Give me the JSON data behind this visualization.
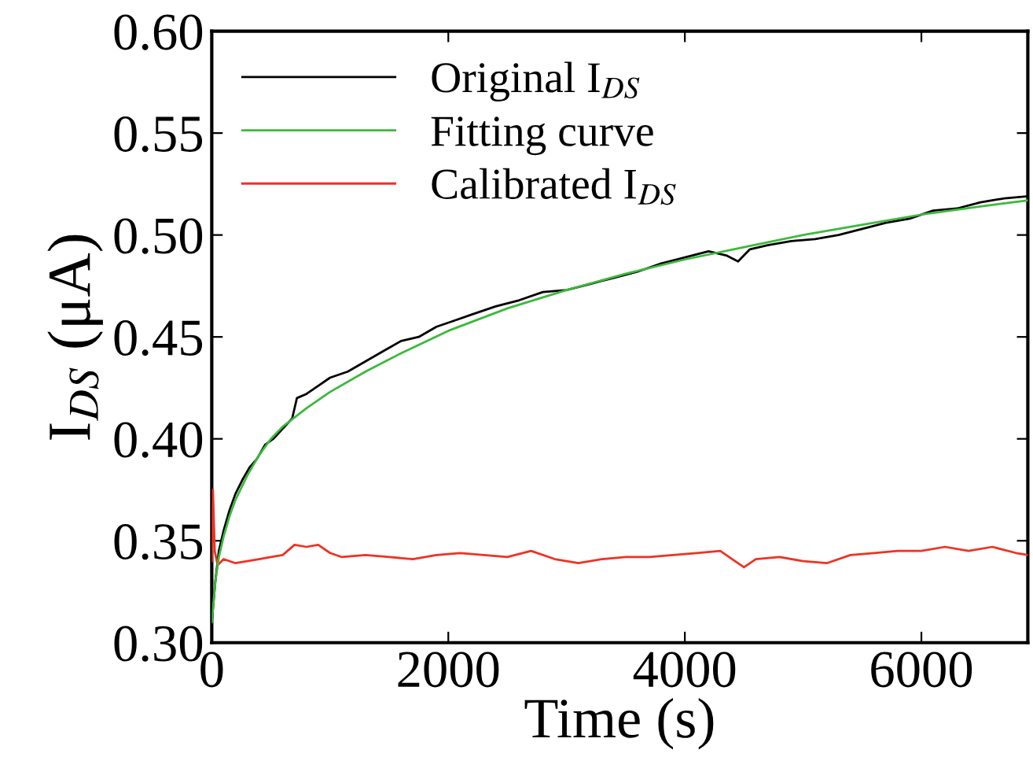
{
  "chart_data": {
    "type": "line",
    "xlabel": "Time (s)",
    "ylabel": "I$_{DS}$ (μA)",
    "xlim": [
      0,
      6900
    ],
    "xticks": [
      0,
      2000,
      4000,
      6000
    ],
    "ylim": [
      0.3,
      0.6
    ],
    "yticks": [
      {
        "value": 0.3,
        "label": "0.30"
      },
      {
        "value": 0.35,
        "label": "0.35"
      },
      {
        "value": 0.4,
        "label": "0.40"
      },
      {
        "value": 0.45,
        "label": "0.45"
      },
      {
        "value": 0.5,
        "label": "0.50"
      },
      {
        "value": 0.55,
        "label": "0.55"
      },
      {
        "value": 0.6,
        "label": "0.60"
      }
    ],
    "grid": false,
    "legend": "top left",
    "marker": "none",
    "line_style": "solid",
    "series": [
      {
        "name": "Original I$_{DS}$",
        "color": "#000000",
        "x": [
          0,
          30,
          60,
          100,
          150,
          200,
          260,
          320,
          380,
          450,
          520,
          600,
          680,
          720,
          800,
          900,
          1000,
          1150,
          1300,
          1450,
          1600,
          1750,
          1900,
          2050,
          2200,
          2400,
          2600,
          2800,
          3000,
          3200,
          3400,
          3600,
          3800,
          4000,
          4200,
          4350,
          4450,
          4550,
          4700,
          4900,
          5100,
          5300,
          5500,
          5700,
          5900,
          6100,
          6300,
          6500,
          6700,
          6900
        ],
        "values": [
          0.31,
          0.33,
          0.345,
          0.355,
          0.365,
          0.373,
          0.38,
          0.386,
          0.39,
          0.397,
          0.4,
          0.405,
          0.41,
          0.42,
          0.422,
          0.426,
          0.43,
          0.433,
          0.438,
          0.443,
          0.448,
          0.45,
          0.455,
          0.458,
          0.461,
          0.465,
          0.468,
          0.472,
          0.473,
          0.476,
          0.479,
          0.482,
          0.486,
          0.489,
          0.492,
          0.49,
          0.487,
          0.493,
          0.495,
          0.497,
          0.498,
          0.5,
          0.503,
          0.506,
          0.508,
          0.512,
          0.513,
          0.516,
          0.518,
          0.519
        ]
      },
      {
        "name": "Fitting curve",
        "color": "#3cb93c",
        "x": [
          0,
          30,
          60,
          100,
          150,
          200,
          300,
          400,
          500,
          600,
          800,
          1000,
          1300,
          1600,
          2000,
          2500,
          3000,
          3500,
          4000,
          4500,
          5000,
          5500,
          6000,
          6500,
          6900
        ],
        "values": [
          0.31,
          0.33,
          0.342,
          0.352,
          0.362,
          0.37,
          0.382,
          0.392,
          0.4,
          0.406,
          0.415,
          0.423,
          0.433,
          0.442,
          0.453,
          0.464,
          0.473,
          0.481,
          0.488,
          0.494,
          0.5,
          0.505,
          0.51,
          0.514,
          0.517
        ]
      },
      {
        "name": "Calibrated I$_{DS}$",
        "color": "#ee3322",
        "x": [
          0,
          10,
          25,
          50,
          100,
          200,
          300,
          400,
          500,
          600,
          700,
          800,
          900,
          1000,
          1100,
          1300,
          1500,
          1700,
          1900,
          2100,
          2300,
          2500,
          2700,
          2900,
          3100,
          3300,
          3500,
          3700,
          3900,
          4100,
          4300,
          4400,
          4500,
          4600,
          4800,
          5000,
          5200,
          5400,
          5600,
          5800,
          6000,
          6200,
          6400,
          6600,
          6800,
          6900
        ],
        "values": [
          0.34,
          0.375,
          0.345,
          0.338,
          0.341,
          0.339,
          0.34,
          0.341,
          0.342,
          0.343,
          0.348,
          0.347,
          0.348,
          0.344,
          0.342,
          0.343,
          0.342,
          0.341,
          0.343,
          0.344,
          0.343,
          0.342,
          0.345,
          0.341,
          0.339,
          0.341,
          0.342,
          0.342,
          0.343,
          0.344,
          0.345,
          0.341,
          0.337,
          0.341,
          0.342,
          0.34,
          0.339,
          0.343,
          0.344,
          0.345,
          0.345,
          0.347,
          0.345,
          0.347,
          0.344,
          0.343
        ]
      }
    ]
  }
}
